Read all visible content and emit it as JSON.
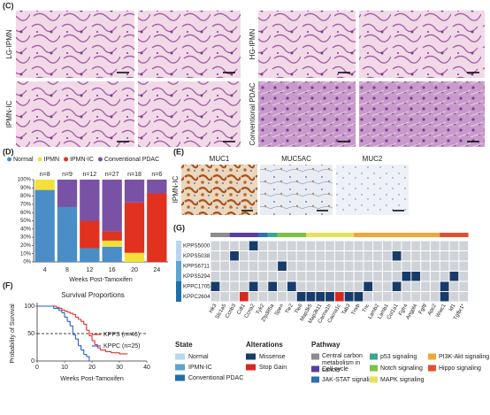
{
  "panels": {
    "c": "(C)",
    "d": "(D)",
    "e": "(E)",
    "f": "(F)",
    "g": "(G)"
  },
  "histology": {
    "labels": [
      "LG-IPMN",
      "HG-IPMN",
      "IPMN-IC",
      "Conventional PDAC"
    ]
  },
  "ihc": {
    "side_label": "IPMN-IC",
    "stains": [
      "MUC1",
      "MUC5AC",
      "MUC2"
    ]
  },
  "chart_data": [
    {
      "type": "bar",
      "stacked": true,
      "categories": [
        "4",
        "8",
        "12",
        "16",
        "20",
        "24"
      ],
      "bar_labels": [
        "n=8",
        "n=9",
        "n=12",
        "n=27",
        "n=18",
        "n=6"
      ],
      "xlabel": "Weeks Post-Tamoxifen",
      "series": [
        {
          "name": "Normal",
          "color": "#4b8dc6",
          "values": [
            87.5,
            66.7,
            16.7,
            18.5,
            0,
            0
          ]
        },
        {
          "name": "IPMN",
          "color": "#f3e03b",
          "values": [
            12.5,
            0,
            0,
            7.4,
            11.1,
            0
          ]
        },
        {
          "name": "IPMN-IC",
          "color": "#e1311f",
          "values": [
            0,
            0,
            33.3,
            11.1,
            61.1,
            83.3
          ]
        },
        {
          "name": "Conventional PDAC",
          "color": "#7a52a5",
          "values": [
            0,
            33.3,
            50,
            63,
            27.8,
            16.7
          ]
        }
      ],
      "ylim": [
        0,
        100
      ],
      "yticks": [
        {
          "value": 0,
          "label": "0%"
        },
        {
          "value": 10,
          "label": "10%"
        },
        {
          "value": 20,
          "label": "20%"
        },
        {
          "value": 30,
          "label": "30%"
        },
        {
          "value": 40,
          "label": "40%"
        },
        {
          "value": 50,
          "label": "50%"
        },
        {
          "value": 60,
          "label": "60%"
        },
        {
          "value": 70,
          "label": "70%"
        },
        {
          "value": 80,
          "label": "80%"
        },
        {
          "value": 90,
          "label": "90%"
        },
        {
          "value": 100,
          "label": "100%"
        }
      ]
    },
    {
      "type": "line",
      "step": true,
      "title": "Survival Proportions",
      "xlabel": "Weeks Post-Tamoxifen",
      "ylabel": "Probability of Survival",
      "xlim": [
        0,
        40
      ],
      "ylim": [
        0,
        100
      ],
      "xticks": [
        0,
        10,
        20,
        30,
        40
      ],
      "yticks": [
        0,
        50,
        100
      ],
      "reference_line": 50,
      "series": [
        {
          "name": "KPPS (n=46)",
          "color": "#e2302a",
          "x": [
            0,
            7,
            8,
            9,
            10,
            11,
            12,
            13,
            14,
            15,
            16,
            17,
            18,
            19,
            20,
            21,
            22,
            23,
            25,
            27,
            30,
            33
          ],
          "values": [
            100,
            98,
            96,
            93,
            91,
            89,
            87,
            85,
            80,
            76,
            72,
            67,
            56,
            46,
            37,
            30,
            24,
            20,
            17,
            15,
            13,
            13
          ]
        },
        {
          "name": "KPPC (n=25)",
          "color": "#2a5fd0",
          "x": [
            0,
            6,
            8,
            9,
            10,
            11,
            12,
            13,
            14,
            15,
            16,
            17,
            18,
            19
          ],
          "values": [
            100,
            96,
            92,
            88,
            80,
            72,
            64,
            48,
            40,
            28,
            20,
            12,
            8,
            0
          ]
        }
      ]
    }
  ],
  "heatmap": {
    "genes": [
      "Hk3",
      "Slc1a5",
      "Ccnb3",
      "Cdt1",
      "Ccna2",
      "Tyk2",
      "Zfp385a",
      "Spen",
      "Tle2",
      "Tle6",
      "Map3k5",
      "Map3k11",
      "Cacna1h",
      "Cacna1c",
      "Tab3",
      "Tnxb",
      "Tnc",
      "Lamb2",
      "Lamb1",
      "Col1a1",
      "Fgfr4",
      "Angpt4",
      "Fgf8",
      "Apc2",
      "Wwc1",
      "Id1",
      "Tgfbr1*"
    ],
    "pathways": [
      {
        "name": "Central carbon metabolism in cancer",
        "color": "#8c8c8c",
        "span": 2
      },
      {
        "name": "Cell cycle",
        "color": "#5b3d9a",
        "span": 3
      },
      {
        "name": "JAK-STAT signaling",
        "color": "#2f6fb5",
        "span": 1
      },
      {
        "name": "p53 signaling",
        "color": "#3aa68f",
        "span": 1
      },
      {
        "name": "Notch signaling",
        "color": "#7cc243",
        "span": 3
      },
      {
        "name": "MAPK signaling",
        "color": "#e4e25a",
        "span": 5
      },
      {
        "name": "PI3K-Akt signaling",
        "color": "#f0a73a",
        "span": 9
      },
      {
        "name": "Hippo signaling",
        "color": "#e0522a",
        "span": 3
      }
    ],
    "states": [
      {
        "name": "Normal",
        "color": "#b9d7ec"
      },
      {
        "name": "IPMN-IC",
        "color": "#5ea5cf"
      },
      {
        "name": "Conventional PDAC",
        "color": "#1f6fa8"
      }
    ],
    "alterations": [
      {
        "name": "Missense",
        "color": "#173c6b"
      },
      {
        "name": "Stop Gain",
        "color": "#d9281f"
      }
    ],
    "empty_color": "#cfd3d8",
    "legend_titles": {
      "state": "State",
      "alterations": "Alterations",
      "pathway": "Pathway"
    },
    "rows": [
      {
        "name": "KPPS5000",
        "state": "Normal",
        "cells": [
          null,
          null,
          null,
          null,
          "Missense",
          null,
          null,
          null,
          null,
          null,
          null,
          null,
          null,
          null,
          null,
          null,
          null,
          null,
          null,
          null,
          null,
          null,
          null,
          null,
          null,
          null,
          null
        ]
      },
      {
        "name": "KPPS5038",
        "state": "Normal",
        "cells": [
          null,
          null,
          "Missense",
          null,
          null,
          null,
          null,
          null,
          null,
          null,
          null,
          null,
          null,
          null,
          null,
          null,
          null,
          null,
          null,
          "Missense",
          null,
          null,
          null,
          null,
          null,
          null,
          null
        ]
      },
      {
        "name": "KPPS6711",
        "state": "IPMN-IC",
        "cells": [
          null,
          null,
          null,
          null,
          null,
          null,
          null,
          "Missense",
          null,
          null,
          null,
          null,
          null,
          null,
          null,
          null,
          null,
          null,
          null,
          null,
          null,
          null,
          null,
          null,
          null,
          null,
          null
        ]
      },
      {
        "name": "KPPS5294",
        "state": "IPMN-IC",
        "cells": [
          null,
          null,
          null,
          null,
          null,
          null,
          null,
          null,
          null,
          null,
          null,
          null,
          null,
          null,
          null,
          null,
          null,
          null,
          null,
          null,
          "Missense",
          "Missense",
          null,
          null,
          null,
          "Missense",
          null
        ]
      },
      {
        "name": "KPPC1705",
        "state": "Conventional PDAC",
        "cells": [
          "Missense",
          null,
          null,
          null,
          "Missense",
          null,
          "Missense",
          null,
          "Missense",
          null,
          null,
          null,
          null,
          null,
          null,
          null,
          "Missense",
          null,
          null,
          "Missense",
          null,
          null,
          null,
          null,
          "Missense",
          null,
          null
        ]
      },
      {
        "name": "KPPC2604",
        "state": "Conventional PDAC",
        "cells": [
          null,
          null,
          null,
          "Stop Gain",
          null,
          null,
          null,
          null,
          null,
          "Missense",
          "Missense",
          "Missense",
          "Missense",
          "Stop Gain",
          "Missense",
          "Missense",
          null,
          null,
          null,
          null,
          null,
          null,
          null,
          null,
          "Missense",
          null,
          null
        ]
      }
    ]
  }
}
